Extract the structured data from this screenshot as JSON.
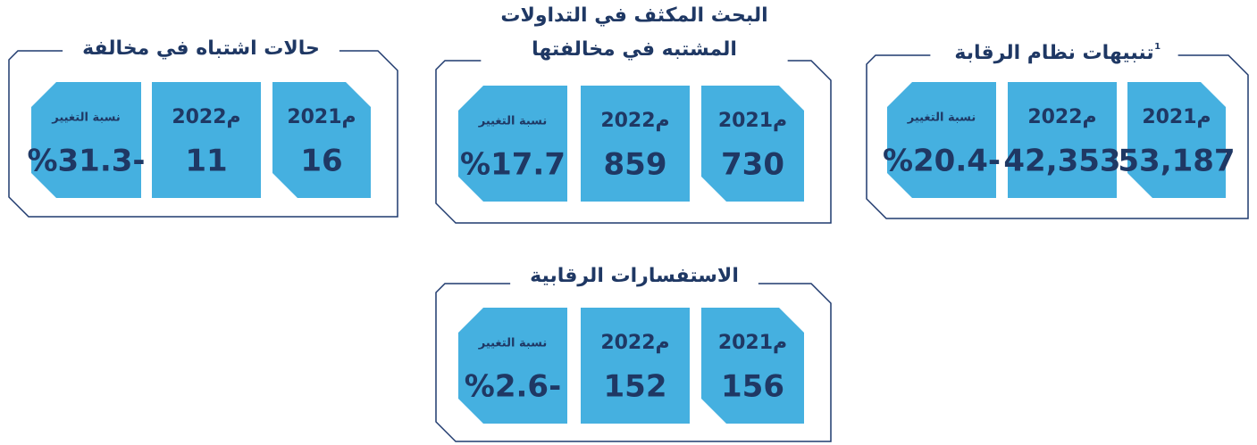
{
  "panels": [
    {
      "title_lines": [
        "تنبيهات نظام الرقابة"
      ],
      "superscript": "1",
      "tiles": [
        {
          "label": "2021م",
          "value": "53,187"
        },
        {
          "label": "2022م",
          "value": "42,353"
        },
        {
          "label": "نسبة التغيير",
          "value": "%20.4-"
        }
      ]
    },
    {
      "title_lines": [
        "البحث المكثف في التداولات",
        "المشتبه في مخالفتها"
      ],
      "tiles": [
        {
          "label": "2021م",
          "value": "730"
        },
        {
          "label": "2022م",
          "value": "859"
        },
        {
          "label": "نسبة التغيير",
          "value": "%17.7"
        }
      ]
    },
    {
      "title_lines": [
        "حالات اشتباه في مخالفة"
      ],
      "tiles": [
        {
          "label": "2021م",
          "value": "16"
        },
        {
          "label": "2022م",
          "value": "11"
        },
        {
          "label": "نسبة التغيير",
          "value": "%31.3-"
        }
      ]
    },
    {
      "title_lines": [
        "الاستفسارات الرقابية"
      ],
      "tiles": [
        {
          "label": "2021م",
          "value": "156"
        },
        {
          "label": "2022م",
          "value": "152"
        },
        {
          "label": "نسبة التغيير",
          "value": "%2.6-"
        }
      ]
    }
  ]
}
